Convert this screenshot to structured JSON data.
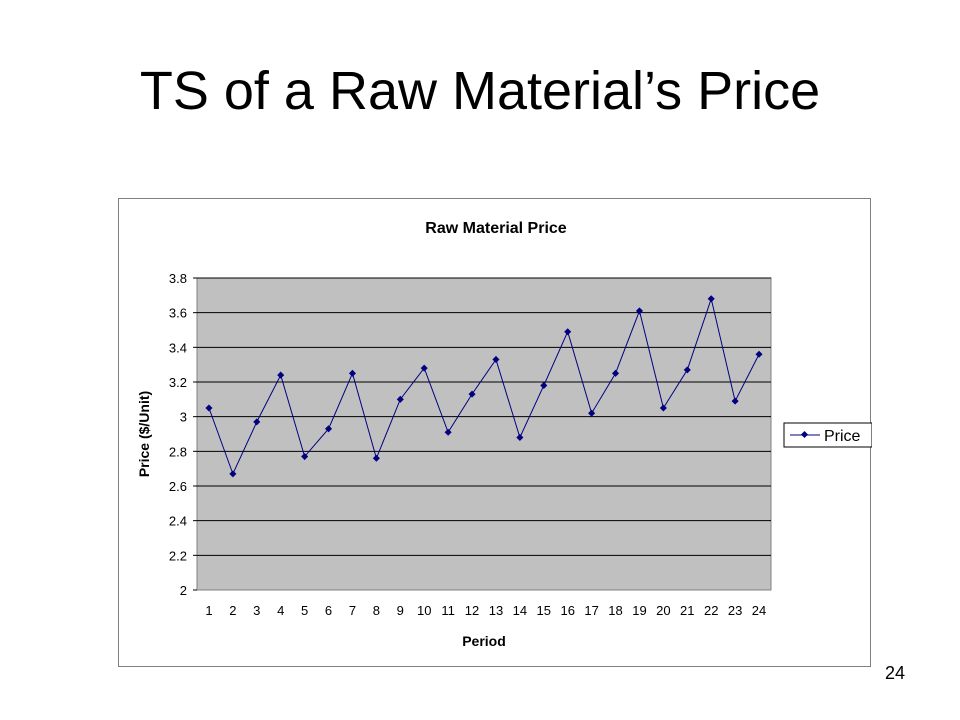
{
  "slide": {
    "title": "TS of a Raw Material’s Price",
    "page_number": "24"
  },
  "chart_data": {
    "type": "line",
    "title": "Raw Material Price",
    "xlabel": "Period",
    "ylabel": "Price ($/Unit)",
    "categories": [
      "1",
      "2",
      "3",
      "4",
      "5",
      "6",
      "7",
      "8",
      "9",
      "10",
      "11",
      "12",
      "13",
      "14",
      "15",
      "16",
      "17",
      "18",
      "19",
      "20",
      "21",
      "22",
      "23",
      "24"
    ],
    "ylim": [
      2,
      3.8
    ],
    "yticks": [
      "2",
      "2.2",
      "2.4",
      "2.6",
      "2.8",
      "3",
      "3.2",
      "3.4",
      "3.6",
      "3.8"
    ],
    "grid": true,
    "legend_position": "right",
    "colors": {
      "series": "#000080",
      "plot_background": "#c0c0c0",
      "gridline": "#000000"
    },
    "series": [
      {
        "name": "Price",
        "values": [
          3.05,
          2.67,
          2.97,
          3.24,
          2.77,
          2.93,
          3.25,
          2.76,
          3.1,
          3.28,
          2.91,
          3.13,
          3.33,
          2.88,
          3.18,
          3.49,
          3.02,
          3.25,
          3.61,
          3.05,
          3.27,
          3.68,
          3.09,
          3.36
        ]
      }
    ]
  }
}
